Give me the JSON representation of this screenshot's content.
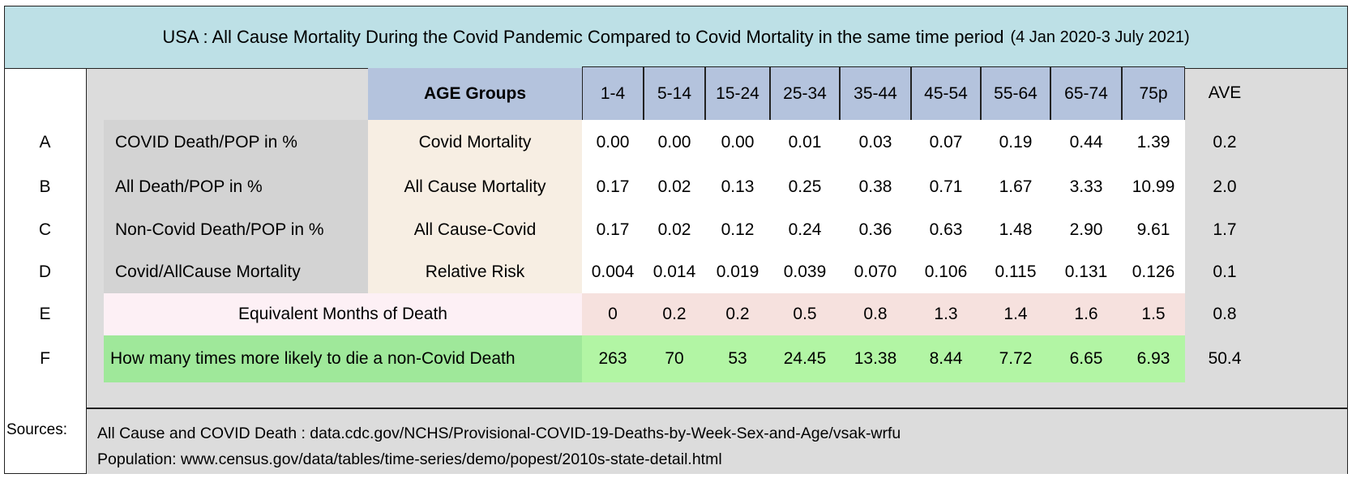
{
  "title": {
    "main": "USA : All Cause Mortality During the Covid Pandemic Compared to Covid Mortality in the same time period",
    "period": "(4 Jan 2020-3 July 2021)"
  },
  "chart_data": {
    "type": "table",
    "header_label": "AGE Groups",
    "columns": [
      "1-4",
      "5-14",
      "15-24",
      "25-34",
      "35-44",
      "45-54",
      "55-64",
      "65-74",
      "75p"
    ],
    "ave_label": "AVE",
    "rows": [
      {
        "letter": "A",
        "label": "COVID  Death/POP in %",
        "description": "Covid Mortality",
        "values": [
          "0.00",
          "0.00",
          "0.00",
          "0.01",
          "0.03",
          "0.07",
          "0.19",
          "0.44",
          "1.39"
        ],
        "ave": "0.2"
      },
      {
        "letter": "B",
        "label": " All Death/POP in %",
        "description": "All Cause Mortality",
        "values": [
          "0.17",
          "0.02",
          "0.13",
          "0.25",
          "0.38",
          "0.71",
          "1.67",
          "3.33",
          "10.99"
        ],
        "ave": "2.0"
      },
      {
        "letter": "C",
        "label": "Non-Covid Death/POP in %",
        "description": "All Cause-Covid",
        "values": [
          "0.17",
          "0.02",
          "0.12",
          "0.24",
          "0.36",
          "0.63",
          "1.48",
          "2.90",
          "9.61"
        ],
        "ave": "1.7"
      },
      {
        "letter": "D",
        "label": " Covid/AllCause Mortality",
        "description": "Relative Risk",
        "values": [
          "0.004",
          "0.014",
          "0.019",
          "0.039",
          "0.070",
          "0.106",
          "0.115",
          "0.131",
          "0.126"
        ],
        "ave": "0.1"
      },
      {
        "letter": "E",
        "label": "Equivalent Months of Death",
        "values": [
          "0",
          "0.2",
          "0.2",
          "0.5",
          "0.8",
          "1.3",
          "1.4",
          "1.6",
          "1.5"
        ],
        "ave": "0.8"
      },
      {
        "letter": "F",
        "label": "How many times more likely to die a non-Covid Death",
        "values": [
          "263",
          "70",
          "53",
          "24.45",
          "13.38",
          "8.44",
          "7.72",
          "6.65",
          "6.93"
        ],
        "ave": "50.4"
      }
    ]
  },
  "sources": {
    "label": "Sources:",
    "lines": [
      "All Cause  and COVID Death : data.cdc.gov/NCHS/Provisional-COVID-19-Deaths-by-Week-Sex-and-Age/vsak-wrfu",
      "Population: www.census.gov/data/tables/time-series/demo/popest/2010s-state-detail.html"
    ]
  },
  "colors": {
    "title_bg": "#bde0e6",
    "header_bg": "#b4c3dd",
    "label_bg": "#d3d3d3",
    "description_bg": "#f7eee3",
    "e_label_bg": "#fdf0f5",
    "e_value_bg": "#f6e1de",
    "f_label_bg": "#9fe89a",
    "f_value_bg": "#b2f5a4",
    "panel_bg": "#dcdcdc"
  }
}
